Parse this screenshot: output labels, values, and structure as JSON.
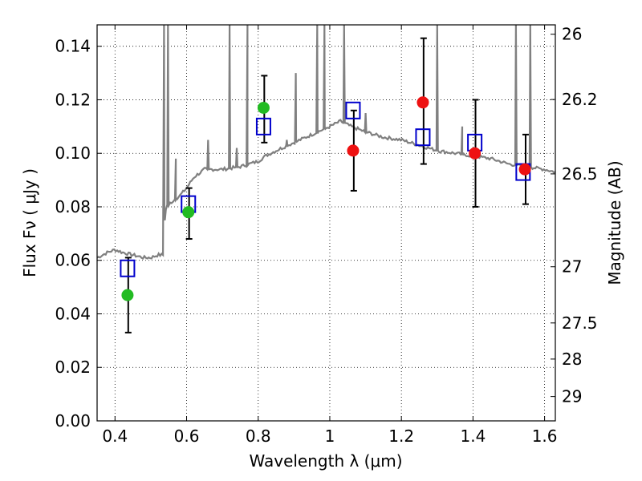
{
  "chart_data": {
    "type": "scatter",
    "xlabel": "Wavelength  λ (μm)",
    "ylabel": "Flux  Fν  ( μJy )",
    "y2label": "Magnitude (AB)",
    "xlim": [
      0.35,
      1.63
    ],
    "ylim": [
      0.0,
      0.148
    ],
    "grid": "dotted",
    "xticks": [
      0.4,
      0.6,
      0.8,
      1.0,
      1.2,
      1.4,
      1.6
    ],
    "xtick_labels": [
      "0.4",
      "0.6",
      "0.8",
      "1",
      "1.2",
      "1.4",
      "1.6"
    ],
    "yticks": [
      0.0,
      0.02,
      0.04,
      0.06,
      0.08,
      0.1,
      0.12,
      0.14
    ],
    "ytick_labels": [
      "0.00",
      "0.02",
      "0.04",
      "0.06",
      "0.08",
      "0.10",
      "0.12",
      "0.14"
    ],
    "y2ticks": [
      {
        "flux": 0.1445,
        "label": "26"
      },
      {
        "flux": 0.1201,
        "label": "26.2"
      },
      {
        "flux": 0.0923,
        "label": "26.5"
      },
      {
        "flux": 0.0576,
        "label": "27"
      },
      {
        "flux": 0.0366,
        "label": "27.5"
      },
      {
        "flux": 0.0231,
        "label": "28"
      },
      {
        "flux": 0.0091,
        "label": "29"
      }
    ],
    "colors": {
      "model": "#808080",
      "green": "#22bb22",
      "red": "#ee1111",
      "box": "#0000cc",
      "error": "#000000"
    },
    "model_spectrum": {
      "x": [
        0.35,
        0.38,
        0.4,
        0.42,
        0.45,
        0.48,
        0.5,
        0.52,
        0.535,
        0.537,
        0.54,
        0.545,
        0.55,
        0.56,
        0.58,
        0.6,
        0.62,
        0.65,
        0.68,
        0.7,
        0.75,
        0.8,
        0.82,
        0.85,
        0.9,
        0.95,
        1.0,
        1.03,
        1.06,
        1.1,
        1.15,
        1.2,
        1.25,
        1.3,
        1.35,
        1.4,
        1.45,
        1.5,
        1.55,
        1.6,
        1.63
      ],
      "y": [
        0.061,
        0.063,
        0.064,
        0.063,
        0.062,
        0.061,
        0.061,
        0.062,
        0.062,
        0.075,
        0.078,
        0.08,
        0.081,
        0.082,
        0.084,
        0.087,
        0.091,
        0.094,
        0.094,
        0.094,
        0.095,
        0.097,
        0.099,
        0.101,
        0.104,
        0.107,
        0.11,
        0.112,
        0.11,
        0.108,
        0.106,
        0.105,
        0.103,
        0.101,
        0.1,
        0.099,
        0.098,
        0.096,
        0.095,
        0.094,
        0.093
      ],
      "emission_lines": [
        {
          "x": 0.537,
          "peak": 0.148
        },
        {
          "x": 0.548,
          "peak": 0.148
        },
        {
          "x": 0.57,
          "peak": 0.098
        },
        {
          "x": 0.66,
          "peak": 0.105
        },
        {
          "x": 0.72,
          "peak": 0.148
        },
        {
          "x": 0.74,
          "peak": 0.102
        },
        {
          "x": 0.77,
          "peak": 0.148
        },
        {
          "x": 0.88,
          "peak": 0.105
        },
        {
          "x": 0.905,
          "peak": 0.13
        },
        {
          "x": 0.965,
          "peak": 0.148
        },
        {
          "x": 0.985,
          "peak": 0.148
        },
        {
          "x": 1.04,
          "peak": 0.148
        },
        {
          "x": 1.1,
          "peak": 0.115
        },
        {
          "x": 1.3,
          "peak": 0.148
        },
        {
          "x": 1.37,
          "peak": 0.11
        },
        {
          "x": 1.52,
          "peak": 0.148
        },
        {
          "x": 1.56,
          "peak": 0.148
        }
      ]
    },
    "series": [
      {
        "marker": "square",
        "color": "#0000cc",
        "x": [
          0.435,
          0.605,
          0.815,
          1.065,
          1.26,
          1.405,
          1.54
        ],
        "y": [
          0.057,
          0.081,
          0.11,
          0.116,
          0.106,
          0.104,
          0.093
        ]
      },
      {
        "marker": "circle",
        "color": "#22bb22",
        "x": [
          0.435,
          0.605,
          0.815
        ],
        "y": [
          0.047,
          0.078,
          0.117
        ]
      },
      {
        "marker": "circle",
        "color": "#ee1111",
        "x": [
          1.065,
          1.26,
          1.405,
          1.545
        ],
        "y": [
          0.101,
          0.119,
          0.1,
          0.094
        ]
      }
    ],
    "error_bars": [
      {
        "x": 0.437,
        "low": 0.033,
        "high": 0.061
      },
      {
        "x": 0.607,
        "low": 0.068,
        "high": 0.087
      },
      {
        "x": 0.817,
        "low": 0.104,
        "high": 0.129
      },
      {
        "x": 1.067,
        "low": 0.086,
        "high": 0.116
      },
      {
        "x": 1.262,
        "low": 0.096,
        "high": 0.143
      },
      {
        "x": 1.407,
        "low": 0.08,
        "high": 0.12
      },
      {
        "x": 1.547,
        "low": 0.081,
        "high": 0.107
      }
    ]
  }
}
